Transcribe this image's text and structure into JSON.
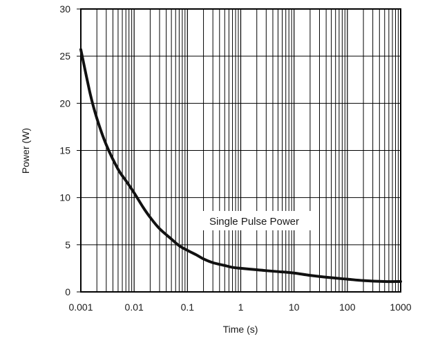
{
  "chart_data": {
    "type": "line",
    "title": "",
    "xlabel": "Time (s)",
    "ylabel": "Power  (W)",
    "xscale": "log",
    "xlim": [
      0.001,
      1000
    ],
    "ylim": [
      0,
      30
    ],
    "grid": true,
    "x_ticks": [
      "0.001",
      "0.01",
      "0.1",
      "1",
      "10",
      "100",
      "1000"
    ],
    "y_ticks": [
      "0",
      "5",
      "10",
      "15",
      "20",
      "25",
      "30"
    ],
    "annotation": "Single Pulse Power",
    "series": [
      {
        "x": [
          0.001,
          0.0015,
          0.002,
          0.003,
          0.005,
          0.007,
          0.01,
          0.015,
          0.02,
          0.03,
          0.05,
          0.07,
          0.1,
          0.15,
          0.2,
          0.3,
          0.5,
          0.7,
          1,
          2,
          3,
          5,
          10,
          20,
          50,
          100,
          200,
          500,
          1000
        ],
        "y": [
          25.7,
          21.0,
          18.4,
          15.6,
          13.0,
          11.8,
          10.5,
          8.9,
          7.9,
          6.7,
          5.6,
          4.9,
          4.4,
          3.9,
          3.5,
          3.1,
          2.8,
          2.6,
          2.5,
          2.35,
          2.25,
          2.15,
          2.0,
          1.75,
          1.5,
          1.35,
          1.2,
          1.1,
          1.1
        ]
      }
    ]
  }
}
